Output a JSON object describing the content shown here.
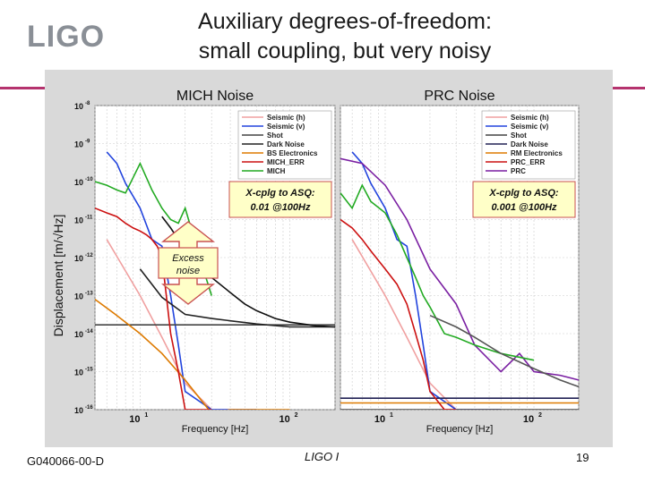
{
  "slide": {
    "logo_text": "LIGO",
    "title_line1": "Auxiliary degrees-of-freedom:",
    "title_line2": "small coupling, but very noisy",
    "footer_left": "G040066-00-D",
    "footer_center": "LIGO I",
    "page_number": "19",
    "accent_color": "#b5336e"
  },
  "chart_data": [
    {
      "type": "line",
      "title": "MICH Noise",
      "ylabel": "Displacement [m/√Hz]",
      "xlabel": "Frequency [Hz]",
      "xscale": "log",
      "yscale": "log",
      "xlim": [
        5,
        200
      ],
      "ylim": [
        1e-16,
        1e-08
      ],
      "x_tick_labels": [
        "10",
        "10"
      ],
      "x_tick_exponents": [
        "1",
        "2"
      ],
      "y_tick_labels": [
        "10",
        "10",
        "10",
        "10",
        "10",
        "10",
        "10",
        "10",
        "10"
      ],
      "y_tick_exponents": [
        "-8",
        "-9",
        "-10",
        "-11",
        "-12",
        "-13",
        "-14",
        "-15",
        "-16"
      ],
      "grid": true,
      "legend_position": "top-right",
      "annotation": "X-cplg to ASQ: 0.01 @100Hz",
      "annotation_line1": "X-cplg to ASQ:",
      "annotation_line2": "0.01 @100Hz",
      "annotation2_line1": "Excess",
      "annotation2_line2": "noise",
      "series": [
        {
          "name": "Seismic (h)",
          "color": "#f0a0a0",
          "x": [
            6,
            10,
            14,
            20,
            30,
            40,
            60
          ],
          "y": [
            3e-12,
            1e-13,
            8e-15,
            5e-16,
            1e-16,
            1e-16,
            1e-16
          ]
        },
        {
          "name": "Seismic (v)",
          "color": "#2244dd",
          "x": [
            6,
            7,
            8,
            10,
            12,
            14,
            16,
            18,
            20,
            30,
            60
          ],
          "y": [
            6e-10,
            3e-10,
            9e-11,
            2e-11,
            3e-12,
            2e-12,
            1e-13,
            5e-15,
            3e-16,
            1e-16,
            1e-16
          ]
        },
        {
          "name": "Shot",
          "color": "#444444",
          "x": [
            5,
            200
          ],
          "y": [
            1.7e-14,
            1.7e-14
          ]
        },
        {
          "name": "Dark Noise",
          "color": "#222222",
          "x": [
            10,
            14,
            20,
            30,
            60,
            100,
            200
          ],
          "y": [
            5e-13,
            9e-14,
            3.2e-14,
            2.5e-14,
            1.8e-14,
            1.5e-14,
            1.5e-14
          ]
        },
        {
          "name": "BS Electronics",
          "color": "#dd7a00",
          "x": [
            5,
            7,
            10,
            14,
            20,
            30,
            40,
            60,
            100
          ],
          "y": [
            8e-14,
            3e-14,
            1e-14,
            3e-15,
            6e-16,
            8e-17,
            1e-16,
            1e-16,
            1e-16
          ]
        },
        {
          "name": "MICH_ERR",
          "color": "#cc1111",
          "x": [
            5,
            6,
            7,
            8,
            9,
            10,
            11,
            12,
            13,
            14,
            16,
            18,
            20,
            25,
            30
          ],
          "y": [
            2e-11,
            1.5e-11,
            1.2e-11,
            8e-12,
            6e-12,
            5e-12,
            4e-12,
            3e-12,
            2e-12,
            1e-12,
            1e-14,
            1e-15,
            1e-16,
            1e-16,
            1e-16
          ]
        },
        {
          "name": "MICH",
          "color": "#22aa22",
          "x": [
            5,
            6,
            7,
            8,
            10,
            12,
            14,
            16,
            18,
            20,
            25,
            30
          ],
          "y": [
            1e-10,
            8e-11,
            6e-11,
            5e-11,
            3e-10,
            6e-11,
            2e-11,
            1e-11,
            8e-12,
            2e-11,
            1e-12,
            1e-13
          ]
        },
        {
          "name": "",
          "color": "#111111",
          "x": [
            14,
            16,
            18,
            20,
            25,
            30,
            40,
            50,
            60,
            80,
            100,
            150,
            200
          ],
          "y": [
            1.2e-11,
            6e-12,
            3e-12,
            6e-12,
            1e-12,
            3e-13,
            1.2e-13,
            6e-14,
            4e-14,
            2.5e-14,
            2e-14,
            1.6e-14,
            1.5e-14
          ]
        }
      ]
    },
    {
      "type": "line",
      "title": "PRC Noise",
      "xlabel": "Frequency [Hz]",
      "xscale": "log",
      "yscale": "log",
      "xlim": [
        5,
        200
      ],
      "ylim": [
        1e-16,
        1e-08
      ],
      "x_tick_labels": [
        "10",
        "10"
      ],
      "x_tick_exponents": [
        "1",
        "2"
      ],
      "grid": true,
      "legend_position": "top-right",
      "annotation": "X-cplg to ASQ: 0.001 @100Hz",
      "annotation_line1": "X-cplg to ASQ:",
      "annotation_line2": "0.001 @100Hz",
      "series": [
        {
          "name": "Seismic (h)",
          "color": "#f0a0a0",
          "x": [
            6,
            10,
            14,
            20,
            30,
            40,
            60
          ],
          "y": [
            3e-12,
            1e-13,
            8e-15,
            5e-16,
            1e-16,
            1e-16,
            1e-16
          ]
        },
        {
          "name": "Seismic (v)",
          "color": "#2244dd",
          "x": [
            6,
            7,
            8,
            10,
            12,
            14,
            16,
            18,
            20,
            30,
            60
          ],
          "y": [
            6e-10,
            3e-10,
            9e-11,
            2e-11,
            3e-12,
            2e-12,
            1e-13,
            5e-15,
            3e-16,
            1e-16,
            1e-16
          ]
        },
        {
          "name": "Shot",
          "color": "#444444",
          "x": [
            5,
            200
          ],
          "y": [
            1e-16,
            1e-16
          ]
        },
        {
          "name": "Dark Noise",
          "color": "#222255",
          "x": [
            5,
            200
          ],
          "y": [
            2e-16,
            2e-16
          ]
        },
        {
          "name": "RM Electronics",
          "color": "#dd7a00",
          "x": [
            5,
            200
          ],
          "y": [
            1.5e-16,
            1.5e-16
          ]
        },
        {
          "name": "PRC_ERR",
          "color": "#cc1111",
          "x": [
            5,
            6,
            7,
            8,
            10,
            12,
            14,
            16,
            18,
            20,
            25,
            30
          ],
          "y": [
            1e-11,
            6e-12,
            3e-12,
            1.5e-12,
            5e-13,
            2e-13,
            6e-14,
            1e-14,
            2e-15,
            3e-16,
            1e-16,
            1e-16
          ]
        },
        {
          "name": "PRC",
          "color": "#7a1fa2",
          "x": [
            5,
            7,
            10,
            14,
            20,
            30,
            40,
            60,
            80,
            100,
            150,
            200
          ],
          "y": [
            4e-10,
            3e-10,
            8e-11,
            1e-11,
            5e-13,
            6e-14,
            5e-15,
            1e-15,
            3e-15,
            1e-15,
            8e-16,
            6e-16
          ]
        },
        {
          "name": "",
          "color": "#22aa22",
          "x": [
            5,
            6,
            7,
            8,
            10,
            12,
            14,
            16,
            18,
            20,
            25,
            30,
            40,
            60,
            100
          ],
          "y": [
            5e-11,
            2e-11,
            8e-11,
            3e-11,
            1.5e-11,
            4e-12,
            1e-12,
            3e-13,
            1e-13,
            5e-14,
            1e-14,
            8e-15,
            5e-15,
            3e-15,
            2e-15
          ]
        },
        {
          "name": "",
          "color": "#555555",
          "x": [
            20,
            30,
            40,
            60,
            100,
            150,
            200
          ],
          "y": [
            3e-14,
            1.5e-14,
            8e-15,
            3e-15,
            1.2e-15,
            6e-16,
            4e-16
          ]
        }
      ]
    }
  ]
}
